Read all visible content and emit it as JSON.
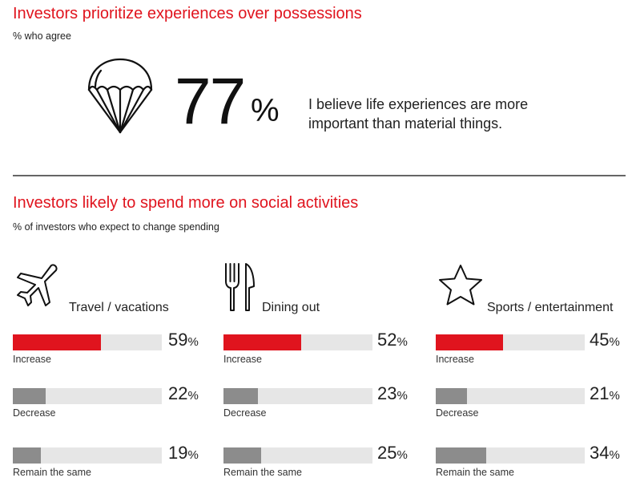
{
  "section1": {
    "title": "Investors prioritize experiences over possessions",
    "subtitle": "% who agree",
    "stat_value": "77",
    "stat_unit": "%",
    "statement_line1": "I believe life experiences are more",
    "statement_line2": "important than material things."
  },
  "section2": {
    "title": "Investors likely to spend more on social activities",
    "subtitle": "% of investors who expect to change spending"
  },
  "colors": {
    "accent": "#e0141e",
    "gray_bar": "#8c8c8c",
    "track": "#e6e6e6"
  },
  "chart_data": [
    {
      "type": "bar",
      "title": "Travel / vacations",
      "icon": "airplane-icon",
      "categories": [
        "Increase",
        "Decrease",
        "Remain the same"
      ],
      "values": [
        59,
        22,
        19
      ],
      "value_labels": [
        "59",
        "22",
        "19"
      ],
      "unit": "%",
      "ylim": [
        0,
        100
      ]
    },
    {
      "type": "bar",
      "title": "Dining out",
      "icon": "fork-knife-icon",
      "categories": [
        "Increase",
        "Decrease",
        "Remain the same"
      ],
      "values": [
        52,
        23,
        25
      ],
      "value_labels": [
        "52",
        "23",
        "25"
      ],
      "unit": "%",
      "ylim": [
        0,
        100
      ]
    },
    {
      "type": "bar",
      "title": "Sports / entertainment",
      "icon": "star-icon",
      "categories": [
        "Increase",
        "Decrease",
        "Remain the same"
      ],
      "values": [
        45,
        21,
        34
      ],
      "value_labels": [
        "45",
        "21",
        "34"
      ],
      "unit": "%",
      "ylim": [
        0,
        100
      ]
    }
  ]
}
